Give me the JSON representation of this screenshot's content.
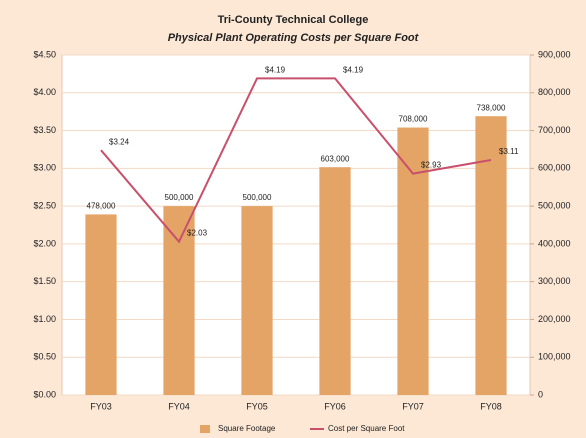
{
  "chart_data": {
    "type": "bar-line",
    "title": "Tri-County Technical College",
    "subtitle": "Physical Plant Operating Costs per Square Foot",
    "categories": [
      "FY03",
      "FY04",
      "FY05",
      "FY06",
      "FY07",
      "FY08"
    ],
    "series": [
      {
        "name": "Square Footage",
        "color": "#e3a466",
        "axis": "y2",
        "kind": "bar",
        "values": [
          478000,
          500000,
          500000,
          603000,
          708000,
          738000
        ],
        "value_labels": [
          "478,000",
          "500,000",
          "500,000",
          "603,000",
          "708,000",
          "738,000"
        ]
      },
      {
        "name": "Cost per Square Foot",
        "color": "#c9506c",
        "axis": "y",
        "kind": "line",
        "values": [
          3.24,
          2.03,
          4.19,
          4.19,
          2.93,
          3.11
        ],
        "value_labels": [
          "$3.24",
          "$2.03",
          "$4.19",
          "$4.19",
          "$2.93",
          "$3.11"
        ]
      }
    ],
    "ylim": [
      0,
      4.5
    ],
    "yticks": [
      {
        "value": 0,
        "label": "$0.00"
      },
      {
        "value": 0.5,
        "label": "$0.50"
      },
      {
        "value": 1,
        "label": "$1.00"
      },
      {
        "value": 1.5,
        "label": "$1.50"
      },
      {
        "value": 2,
        "label": "$2.00"
      },
      {
        "value": 2.5,
        "label": "$2.50"
      },
      {
        "value": 3,
        "label": "$3.00"
      },
      {
        "value": 3.5,
        "label": "$3.50"
      },
      {
        "value": 4,
        "label": "$4.00"
      },
      {
        "value": 4.5,
        "label": "$4.50"
      }
    ],
    "y2lim": [
      0,
      900000
    ],
    "y2ticks": [
      0,
      {
        "value": 100000,
        "label": "100,000"
      },
      {
        "value": 200000,
        "label": "200,000"
      },
      {
        "value": 300000,
        "label": "300,000"
      },
      {
        "value": 400000,
        "label": "400,000"
      },
      {
        "value": 500000,
        "label": "500,000"
      },
      {
        "value": 600000,
        "label": "600,000"
      },
      {
        "value": 700000,
        "label": "700,000"
      },
      {
        "value": 800000,
        "label": "800,000"
      },
      {
        "value": 900000,
        "label": "900,000"
      }
    ],
    "grid": true,
    "legend": "bottom"
  }
}
